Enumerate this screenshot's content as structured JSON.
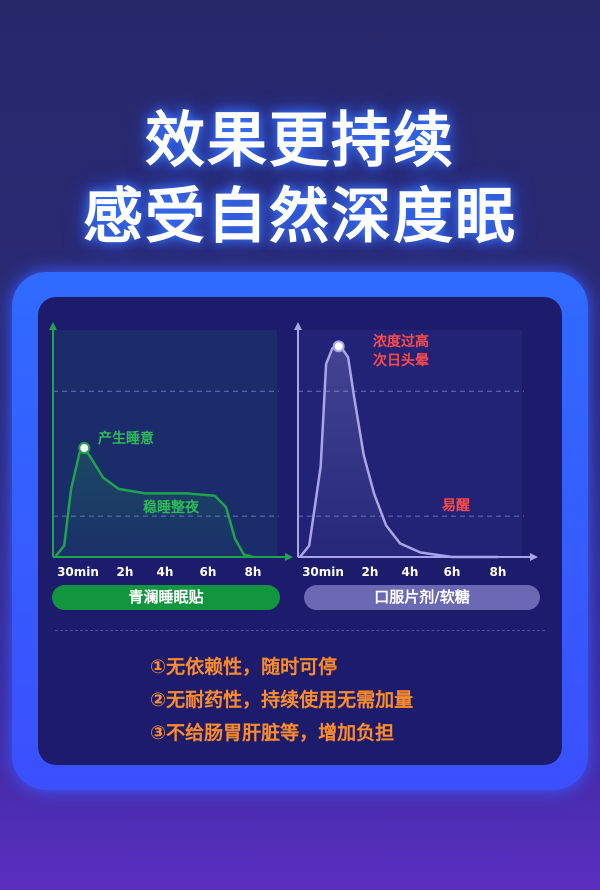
{
  "headline": {
    "line1": "效果更持续",
    "line2": "感受自然深度眠"
  },
  "chart_data": [
    {
      "type": "line",
      "series_label": "青澜睡眠贴",
      "x_ticks": [
        "30min",
        "2h",
        "4h",
        "6h",
        "8h"
      ],
      "x_tick_hours": [
        0.5,
        2,
        4,
        6,
        8
      ],
      "ylim": [
        0,
        100
      ],
      "reference_lines": [
        18,
        73
      ],
      "color": "#1fa34c",
      "points": [
        [
          0,
          0
        ],
        [
          0.2,
          5
        ],
        [
          0.35,
          30
        ],
        [
          0.55,
          46
        ],
        [
          0.7,
          48
        ],
        [
          0.9,
          44
        ],
        [
          1.3,
          35
        ],
        [
          1.8,
          30
        ],
        [
          3,
          28
        ],
        [
          5,
          28
        ],
        [
          6.3,
          27
        ],
        [
          6.8,
          22
        ],
        [
          7.2,
          8
        ],
        [
          7.6,
          1
        ],
        [
          8,
          0
        ]
      ],
      "marker_hour": 0.7,
      "annotations": [
        {
          "text": "产生睡意",
          "color": "#2fb85a"
        },
        {
          "text": "稳睡整夜",
          "color": "#2fb85a"
        }
      ]
    },
    {
      "type": "line",
      "series_label": "口服片剂/软糖",
      "x_ticks": [
        "30min",
        "2h",
        "4h",
        "6h",
        "8h"
      ],
      "x_tick_hours": [
        0.5,
        2,
        4,
        6,
        8
      ],
      "ylim": [
        0,
        100
      ],
      "reference_lines": [
        18,
        73
      ],
      "color": "#a9a6e8",
      "points": [
        [
          0,
          0
        ],
        [
          0.2,
          5
        ],
        [
          0.45,
          40
        ],
        [
          0.6,
          85
        ],
        [
          0.8,
          92
        ],
        [
          1.05,
          93
        ],
        [
          1.3,
          88
        ],
        [
          1.5,
          70
        ],
        [
          1.8,
          45
        ],
        [
          2.2,
          28
        ],
        [
          2.8,
          14
        ],
        [
          3.5,
          6
        ],
        [
          4.5,
          2
        ],
        [
          6,
          0
        ],
        [
          8,
          0
        ]
      ],
      "marker_hour": 1.0,
      "annotations": [
        {
          "text": "浓度过高",
          "color": "#ff4a4a"
        },
        {
          "text": "次日头晕",
          "color": "#ff4a4a"
        },
        {
          "text": "易醒",
          "color": "#ff4a4a"
        }
      ]
    }
  ],
  "benefits": [
    "①无依赖性，随时可停",
    "②无耐药性，持续使用无需加量",
    "③不给肠胃肝脏等，增加负担"
  ]
}
